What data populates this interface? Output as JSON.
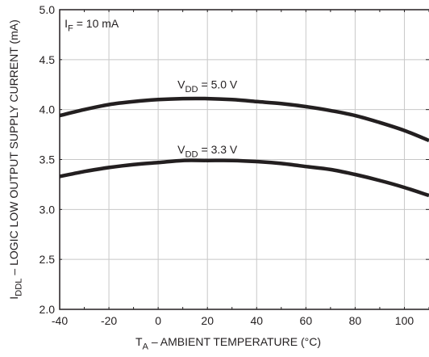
{
  "chart_data": {
    "type": "line",
    "xlabel_main": "T",
    "xlabel_sub": "A",
    "xlabel_rest": " – AMBIENT TEMPERATURE (°C)",
    "ylabel_main": "I",
    "ylabel_sub": "DDL",
    "ylabel_rest": " – LOGIC LOW OUTPUT SUPPLY CURRENT (mA)",
    "xlim": [
      -40,
      110
    ],
    "ylim": [
      2.0,
      5.0
    ],
    "xticks": [
      -40,
      -20,
      0,
      20,
      40,
      60,
      80,
      100
    ],
    "xtick_labels": [
      "-40",
      "-20",
      "0",
      "20",
      "40",
      "60",
      "80",
      "100"
    ],
    "yticks": [
      2.0,
      2.5,
      3.0,
      3.5,
      4.0,
      4.5,
      5.0
    ],
    "ytick_labels": [
      "2.0",
      "2.5",
      "3.0",
      "3.5",
      "4.0",
      "4.5",
      "5.0"
    ],
    "grid": true,
    "condition": {
      "main": "I",
      "sub": "F",
      "rest": " = 10 mA"
    },
    "series": [
      {
        "name_main": "V",
        "name_sub": "DD",
        "name_rest": " = 5.0 V",
        "label_at": [
          20,
          4.21
        ],
        "x": [
          -40,
          -30,
          -20,
          -10,
          0,
          10,
          20,
          30,
          40,
          50,
          60,
          70,
          80,
          90,
          100,
          110
        ],
        "y": [
          3.94,
          4.0,
          4.05,
          4.08,
          4.1,
          4.11,
          4.11,
          4.1,
          4.08,
          4.06,
          4.03,
          3.99,
          3.94,
          3.87,
          3.79,
          3.69
        ]
      },
      {
        "name_main": "V",
        "name_sub": "DD",
        "name_rest": " = 3.3 V",
        "label_at": [
          20,
          3.56
        ],
        "x": [
          -40,
          -30,
          -20,
          -10,
          0,
          10,
          20,
          30,
          40,
          50,
          60,
          70,
          80,
          90,
          100,
          110
        ],
        "y": [
          3.33,
          3.38,
          3.42,
          3.45,
          3.47,
          3.49,
          3.49,
          3.49,
          3.48,
          3.46,
          3.43,
          3.4,
          3.35,
          3.29,
          3.22,
          3.14
        ]
      }
    ],
    "colors": {
      "line": "#231f20",
      "grid": "#c8c8c8",
      "frame": "#231f20",
      "text": "#231f20"
    }
  }
}
